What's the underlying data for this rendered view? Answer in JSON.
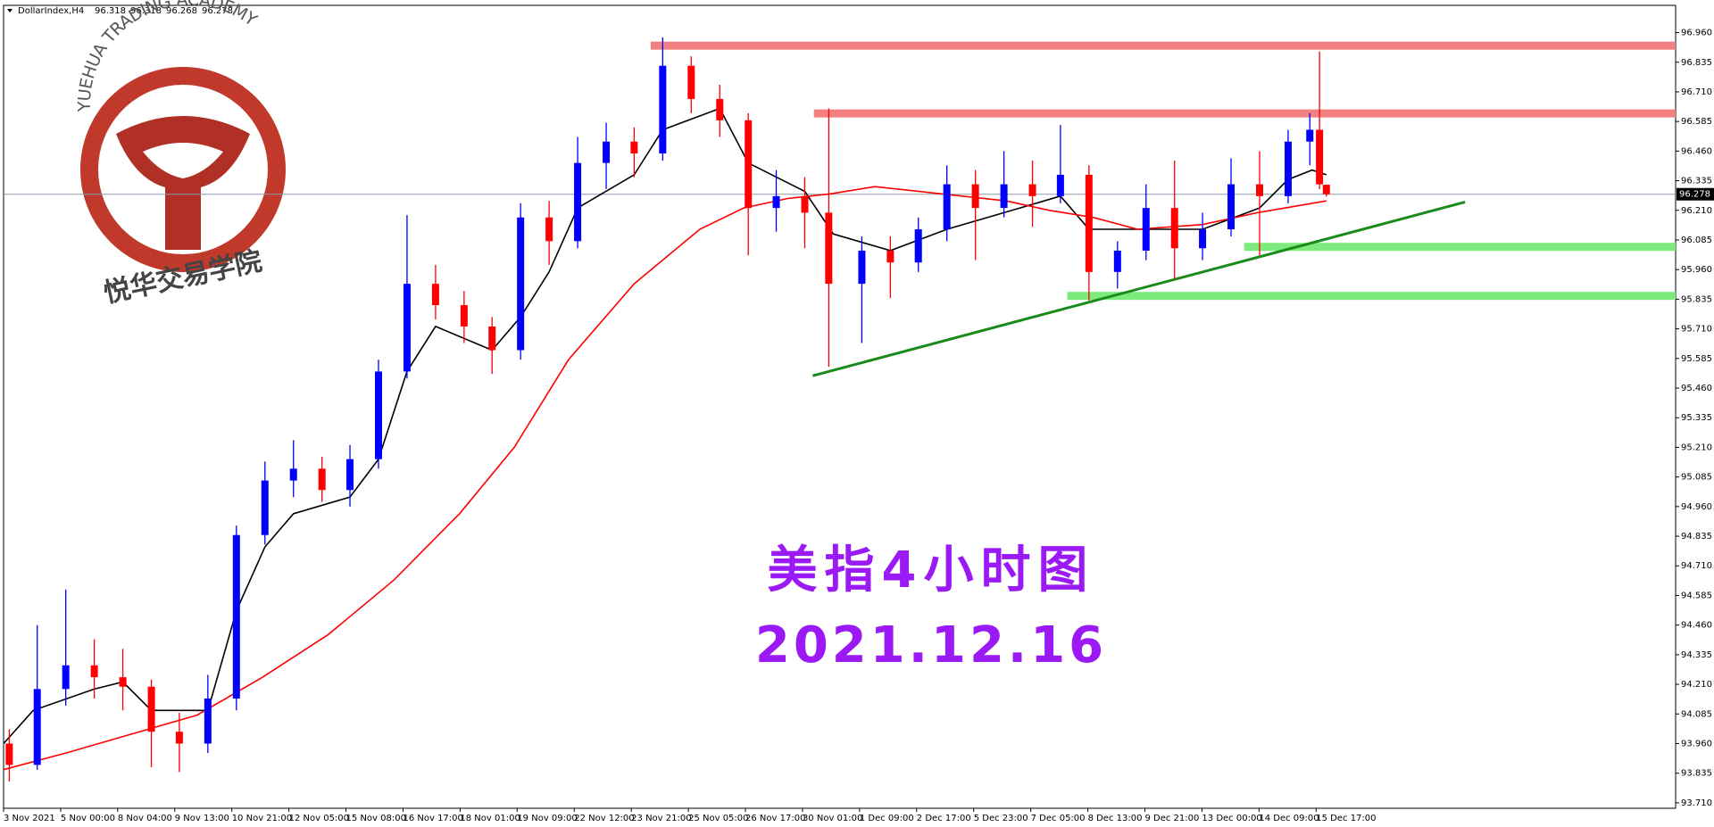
{
  "chart_data": {
    "type": "candlestick",
    "header": {
      "symbol": "DollarIndex,H4"
    },
    "watermark": {
      "text_en": "YUEHUA TRADING ACADEMY",
      "text_cn": "悦华交易学院"
    },
    "annotations": [
      "美指4小时图",
      "2021.12.16"
    ],
    "annotation_color": "#9b19f5",
    "up_color": "#0000ff",
    "down_color": "#ff0000",
    "xlim": [
      0,
      29.3
    ],
    "ylim": [
      93.687,
      97.075
    ],
    "xticks": [
      {
        "value": 0,
        "label": "3 Nov 2021"
      },
      {
        "value": 1,
        "label": "5 Nov 00:00"
      },
      {
        "value": 2,
        "label": "8 Nov 04:00"
      },
      {
        "value": 3,
        "label": "9 Nov 13:00"
      },
      {
        "value": 4,
        "label": "10 Nov 21:00"
      },
      {
        "value": 5,
        "label": "12 Nov 05:00"
      },
      {
        "value": 6,
        "label": "15 Nov 08:00"
      },
      {
        "value": 7,
        "label": "16 Nov 17:00"
      },
      {
        "value": 8,
        "label": "18 Nov 01:00"
      },
      {
        "value": 9,
        "label": "19 Nov 09:00"
      },
      {
        "value": 10,
        "label": "22 Nov 12:00"
      },
      {
        "value": 11,
        "label": "23 Nov 21:00"
      },
      {
        "value": 12,
        "label": "25 Nov 05:00"
      },
      {
        "value": 13,
        "label": "26 Nov 17:00"
      },
      {
        "value": 14,
        "label": "30 Nov 01:00"
      },
      {
        "value": 15,
        "label": "1 Dec 09:00"
      },
      {
        "value": 16,
        "label": "2 Dec 17:00"
      },
      {
        "value": 17,
        "label": "5 Dec 23:00"
      },
      {
        "value": 18,
        "label": "7 Dec 05:00"
      },
      {
        "value": 19,
        "label": "8 Dec 13:00"
      },
      {
        "value": 20,
        "label": "9 Dec 21:00"
      },
      {
        "value": 21,
        "label": "13 Dec 00:00"
      },
      {
        "value": 22,
        "label": "14 Dec 09:00"
      },
      {
        "value": 23,
        "label": "15 Dec 17:00"
      }
    ],
    "yticks": [
      {
        "value": 93.71,
        "label": "93.710"
      },
      93.835,
      {
        "value": 93.96,
        "label": "93.960"
      },
      94.085,
      {
        "value": 94.21,
        "label": "94.210"
      },
      94.335,
      {
        "value": 94.46,
        "label": "94.460"
      },
      94.585,
      {
        "value": 94.71,
        "label": "94.710"
      },
      94.835,
      {
        "value": 94.96,
        "label": "94.960"
      },
      95.085,
      {
        "value": 95.21,
        "label": "95.210"
      },
      95.335,
      {
        "value": 95.46,
        "label": "95.460"
      },
      95.585,
      {
        "value": 95.71,
        "label": "95.710"
      },
      95.835,
      {
        "value": 95.96,
        "label": "95.960"
      },
      96.085,
      {
        "value": 96.21,
        "label": "96.210"
      },
      96.335,
      {
        "value": 96.46,
        "label": "96.460"
      },
      96.585,
      {
        "value": 96.71,
        "label": "96.710"
      },
      96.835,
      {
        "value": 96.96,
        "label": "96.960"
      }
    ],
    "current_price": 96.278,
    "candles": {
      "x": [
        0.1,
        0.59,
        1.09,
        1.59,
        2.09,
        2.59,
        3.08,
        3.58,
        4.08,
        4.58,
        5.08,
        5.58,
        6.07,
        6.57,
        7.07,
        7.57,
        8.07,
        8.56,
        9.06,
        9.56,
        10.06,
        10.56,
        11.05,
        11.55,
        12.05,
        12.55,
        13.05,
        13.54,
        14.04,
        14.46,
        15.04,
        15.54,
        16.03,
        16.53,
        17.03,
        17.53,
        18.03,
        18.52,
        19.02,
        19.52,
        20.02,
        20.52,
        21.01,
        21.51,
        22.01,
        22.51,
        22.89,
        23.06,
        23.18
      ],
      "open": [
        93.96,
        93.87,
        94.19,
        94.29,
        94.24,
        94.2,
        94.01,
        93.96,
        94.15,
        94.84,
        95.07,
        95.12,
        95.03,
        95.16,
        95.53,
        95.9,
        95.81,
        95.72,
        95.62,
        96.18,
        96.08,
        96.41,
        96.5,
        96.45,
        96.82,
        96.68,
        96.59,
        96.22,
        96.27,
        96.2,
        95.9,
        96.04,
        95.99,
        96.13,
        96.32,
        96.22,
        96.32,
        96.27,
        96.36,
        95.95,
        96.04,
        96.22,
        96.05,
        96.13,
        96.32,
        96.27,
        96.5,
        96.55,
        96.318
      ],
      "high": [
        94.02,
        94.46,
        94.61,
        94.4,
        94.36,
        94.23,
        94.09,
        94.25,
        94.88,
        95.15,
        95.24,
        95.17,
        95.22,
        95.58,
        96.19,
        95.98,
        95.87,
        95.76,
        96.24,
        96.25,
        96.52,
        96.58,
        96.56,
        96.94,
        96.86,
        96.74,
        96.62,
        96.38,
        96.35,
        96.64,
        96.1,
        96.1,
        96.18,
        96.4,
        96.38,
        96.46,
        96.42,
        96.57,
        96.4,
        96.08,
        96.32,
        96.42,
        96.2,
        96.43,
        96.46,
        96.55,
        96.62,
        96.88,
        96.318
      ],
      "low": [
        93.8,
        93.85,
        94.12,
        94.15,
        94.1,
        93.86,
        93.84,
        93.92,
        94.1,
        94.8,
        95.0,
        94.98,
        94.96,
        95.12,
        95.5,
        95.75,
        95.65,
        95.52,
        95.58,
        95.98,
        96.05,
        96.3,
        96.35,
        96.42,
        96.62,
        96.52,
        96.02,
        96.12,
        96.05,
        95.55,
        95.65,
        95.84,
        95.95,
        96.08,
        96.0,
        96.18,
        96.14,
        96.24,
        95.83,
        95.88,
        96.0,
        95.92,
        96.0,
        96.1,
        96.02,
        96.24,
        96.4,
        96.3,
        96.268
      ],
      "close": [
        93.87,
        94.19,
        94.29,
        94.24,
        94.2,
        94.01,
        93.96,
        94.15,
        94.84,
        95.07,
        95.12,
        95.03,
        95.16,
        95.53,
        95.9,
        95.81,
        95.72,
        95.62,
        96.18,
        96.08,
        96.41,
        96.5,
        96.45,
        96.82,
        96.68,
        96.59,
        96.22,
        96.27,
        96.2,
        95.9,
        96.04,
        95.99,
        96.13,
        96.32,
        96.22,
        96.32,
        96.27,
        96.36,
        95.95,
        96.04,
        96.22,
        96.05,
        96.13,
        96.32,
        96.27,
        96.5,
        96.55,
        96.32,
        96.278
      ]
    },
    "moving_averages": [
      {
        "color": "#000000",
        "x": [
          0.0,
          0.52,
          1.59,
          2.09,
          2.59,
          3.58,
          4.08,
          4.58,
          5.08,
          6.07,
          6.57,
          7.07,
          7.57,
          8.56,
          9.06,
          9.56,
          10.06,
          11.05,
          11.55,
          12.55,
          13.05,
          14.04,
          14.54,
          15.54,
          16.53,
          17.53,
          18.52,
          19.02,
          20.02,
          21.01,
          22.01,
          22.51,
          22.93,
          23.18
        ],
        "values": [
          93.96,
          94.1,
          94.19,
          94.22,
          94.1,
          94.1,
          94.52,
          94.79,
          94.93,
          95.0,
          95.16,
          95.53,
          95.72,
          95.62,
          95.76,
          95.95,
          96.22,
          96.36,
          96.55,
          96.64,
          96.41,
          96.29,
          96.11,
          96.04,
          96.13,
          96.2,
          96.27,
          96.13,
          96.13,
          96.13,
          96.22,
          96.34,
          96.38,
          96.36
        ]
      },
      {
        "color": "#ff0000",
        "x": [
          0.0,
          1.09,
          2.24,
          3.39,
          4.54,
          5.69,
          6.84,
          7.99,
          8.95,
          9.9,
          11.05,
          12.2,
          12.97,
          13.74,
          14.5,
          15.27,
          16.42,
          17.57,
          18.33,
          19.1,
          19.87,
          21.01,
          21.97,
          23.18
        ],
        "values": [
          93.85,
          93.92,
          94.0,
          94.08,
          94.24,
          94.42,
          94.65,
          94.93,
          95.21,
          95.58,
          95.9,
          96.13,
          96.22,
          96.26,
          96.28,
          96.31,
          96.28,
          96.25,
          96.21,
          96.18,
          96.13,
          96.15,
          96.2,
          96.25
        ]
      }
    ],
    "levels": [
      {
        "color": "#f28080",
        "y": 96.905,
        "x0": 11.34
      },
      {
        "color": "#f28080",
        "y": 96.619,
        "x0": 14.2
      },
      {
        "color": "#7cea7c",
        "y": 96.056,
        "x0": 21.74
      },
      {
        "color": "#7cea7c",
        "y": 95.849,
        "x0": 18.64
      }
    ],
    "trendline": {
      "color": "#1a8a1a",
      "x": [
        14.18,
        25.61
      ],
      "y": [
        95.512,
        96.245
      ]
    }
  }
}
